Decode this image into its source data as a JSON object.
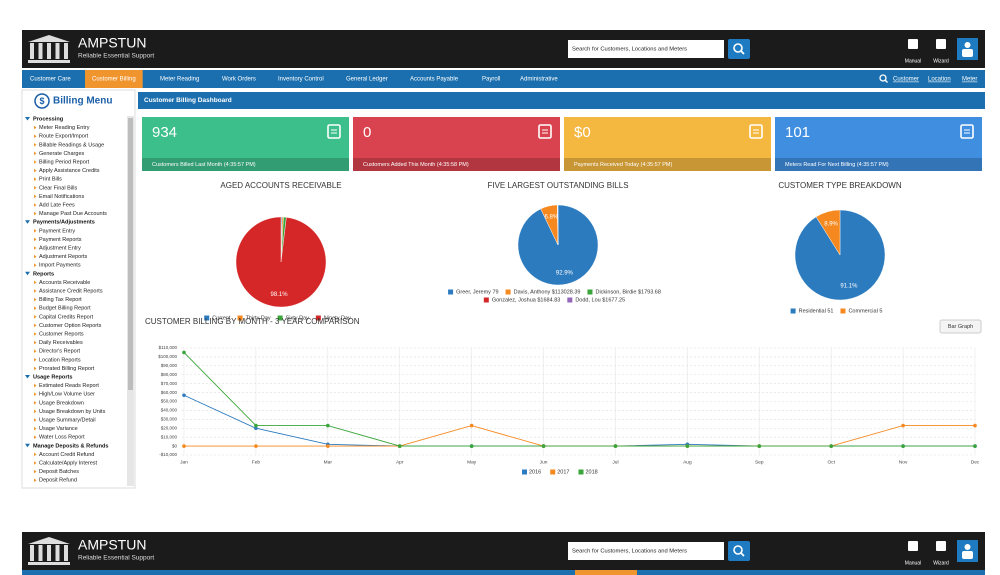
{
  "header": {
    "brand": "AMPSTUN",
    "tagline": "Reliable Essential Support",
    "search_placeholder": "Search for Customers, Locations and Meters",
    "tools": [
      "Manual",
      "Wizard"
    ]
  },
  "nav": {
    "items": [
      "Customer Care",
      "Customer Billing",
      "Meter Reading",
      "Work Orders",
      "Inventory Control",
      "General Ledger",
      "Accounts Payable",
      "Payroll",
      "Administrative"
    ],
    "active": 1,
    "right_links": [
      "Customer",
      "Location",
      "Meter"
    ]
  },
  "sidebar": {
    "title": "Billing Menu",
    "sections": [
      {
        "title": "Processing",
        "items": [
          "Meter Reading Entry",
          "Route Export/Import",
          "Billable Readings & Usage",
          "Generate Charges",
          "Billing Period Report",
          "Apply Assistance Credits",
          "Print Bills",
          "Clear Final Bills",
          "Email Notifications",
          "Add Late Fees",
          "Manage Past Due Accounts"
        ]
      },
      {
        "title": "Payments/Adjustments",
        "items": [
          "Payment Entry",
          "Payment Reports",
          "Adjustment Entry",
          "Adjustment Reports",
          "Import Payments"
        ]
      },
      {
        "title": "Reports",
        "items": [
          "Accounts Receivable",
          "Assistance Credit Reports",
          "Billing Tax Report",
          "Budget Billing Report",
          "Capital Credits Report",
          "Customer Option Reports",
          "Customer Reports",
          "Daily Receivables",
          "Director's Report",
          "Location Reports",
          "Prorated Billing Report"
        ]
      },
      {
        "title": "Usage Reports",
        "items": [
          "Estimated Reads Report",
          "High/Low Volume User",
          "Usage Breakdown",
          "Usage Breakdown by Units",
          "Usage Summary/Detail",
          "Usage Variance",
          "Water Loss Report"
        ]
      },
      {
        "title": "Manage Deposits & Refunds",
        "items": [
          "Account Credit Refund",
          "Calculate/Apply Interest",
          "Deposit Batches",
          "Deposit Refund"
        ]
      }
    ]
  },
  "dashboard": {
    "title": "Customer Billing Dashboard",
    "cards": [
      {
        "value": "934",
        "label": "Customers Billed Last Month (4:35:57 PM)",
        "color": "#3dbf8c"
      },
      {
        "value": "0",
        "label": "Customers Added This Month (4:35:58 PM)",
        "color": "#d9434f"
      },
      {
        "value": "$0",
        "label": "Payments Received Today (4:35:57 PM)",
        "color": "#f4b740"
      },
      {
        "value": "101",
        "label": "Meters Read For Next Billing (4:35:57 PM)",
        "color": "#3f8ee0"
      }
    ]
  },
  "chart_data": [
    {
      "type": "pie",
      "title": "AGED ACCOUNTS RECEIVABLE",
      "categories": [
        "Current",
        "Thirty Day",
        "Sixty Day",
        "Ninety Day"
      ],
      "values": [
        0.4,
        0.5,
        1.0,
        98.1
      ],
      "value_labels": [
        null,
        null,
        null,
        "98.1%"
      ],
      "colors": [
        "#2c7bbf",
        "#f5891f",
        "#3aa53a",
        "#d62728"
      ]
    },
    {
      "type": "pie",
      "title": "FIVE LARGEST OUTSTANDING BILLS",
      "categories": [
        "Greer, Jeremy 79",
        "Davis, Anthony $113028.39",
        "Dickinson, Birdie $1793.68",
        "Gonzalez, Joshua $1684.83",
        "Dodd, Lou $1677.25"
      ],
      "values": [
        92.9,
        6.8,
        0.1,
        0.1,
        0.1
      ],
      "value_labels": [
        "92.9%",
        "6.8%",
        null,
        null,
        null
      ],
      "colors": [
        "#2c7bbf",
        "#f5891f",
        "#3aa53a",
        "#d62728",
        "#9467bd"
      ]
    },
    {
      "type": "pie",
      "title": "CUSTOMER TYPE BREAKDOWN",
      "categories": [
        "Residential 51",
        "Commercial 5"
      ],
      "values": [
        91.1,
        8.9
      ],
      "value_labels": [
        "91.1%",
        "8.9%"
      ],
      "colors": [
        "#2c7bbf",
        "#f5891f"
      ]
    },
    {
      "type": "line",
      "title": "CUSTOMER BILLING BY MONTH - 3 YEAR COMPARISON",
      "button": "Bar Graph",
      "categories": [
        "Jan",
        "Feb",
        "Mar",
        "Apr",
        "May",
        "Jun",
        "Jul",
        "Aug",
        "Sep",
        "Oct",
        "Nov",
        "Dec"
      ],
      "series": [
        {
          "name": "2016",
          "color": "#2c7bbf",
          "values": [
            57000,
            20000,
            2000,
            0,
            0,
            0,
            0,
            2000,
            0,
            0,
            0,
            0
          ]
        },
        {
          "name": "2017",
          "color": "#f5891f",
          "values": [
            0,
            0,
            0,
            0,
            23000,
            0,
            0,
            0,
            0,
            0,
            23000,
            23000
          ]
        },
        {
          "name": "2018",
          "color": "#3aa53a",
          "values": [
            105000,
            23000,
            23000,
            0,
            0,
            0,
            0,
            0,
            0,
            0,
            0,
            0
          ]
        }
      ],
      "ylim": [
        -10000,
        110000
      ],
      "yticks": [
        {
          "value": 110000,
          "label": "$110,000"
        },
        {
          "value": 100000,
          "label": "$100,000"
        },
        {
          "value": 90000,
          "label": "$90,000"
        },
        {
          "value": 80000,
          "label": "$80,000"
        },
        {
          "value": 70000,
          "label": "$70,000"
        },
        {
          "value": 60000,
          "label": "$60,000"
        },
        {
          "value": 50000,
          "label": "$50,000"
        },
        {
          "value": 40000,
          "label": "$40,000"
        },
        {
          "value": 30000,
          "label": "$30,000"
        },
        {
          "value": 20000,
          "label": "$20,000"
        },
        {
          "value": 10000,
          "label": "$10,000"
        },
        {
          "value": 0,
          "label": "$0"
        },
        {
          "value": -10000,
          "label": "-$10,000"
        }
      ],
      "grid": true
    }
  ]
}
